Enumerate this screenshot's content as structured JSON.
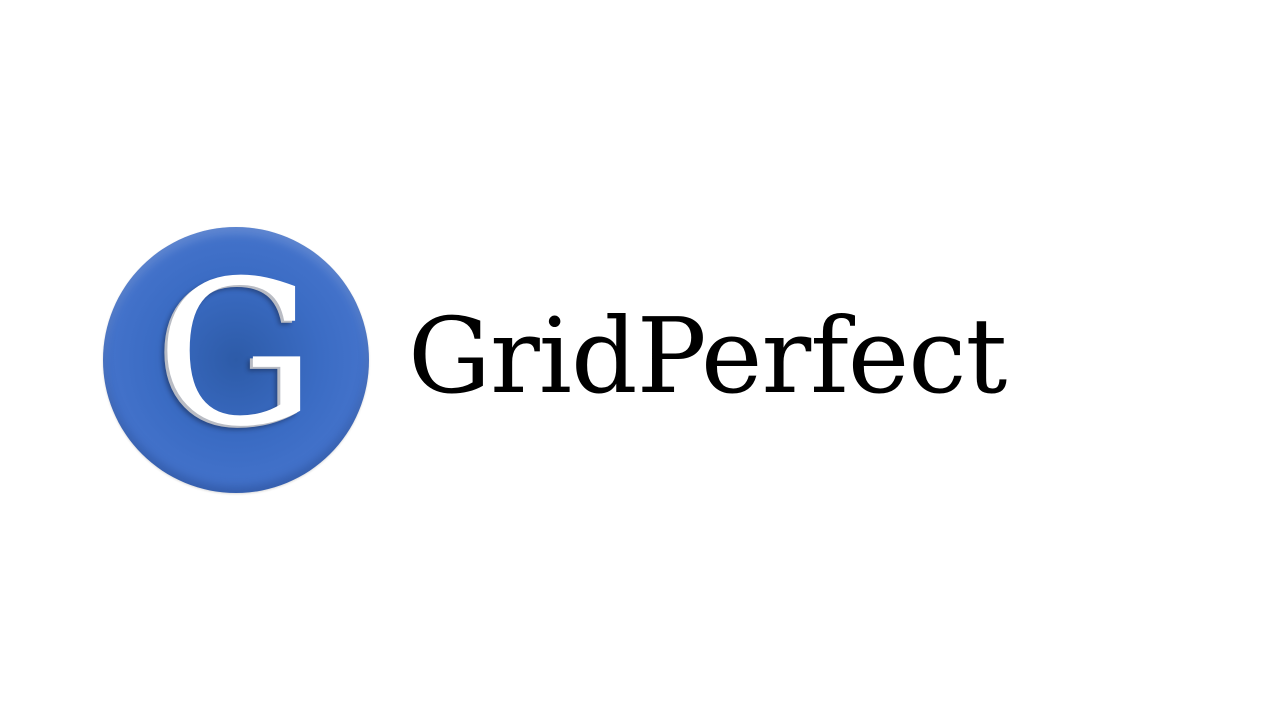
{
  "logo": {
    "letter": "G",
    "icon": "g-logo-icon",
    "color": "#3f6dc6"
  },
  "wordmark": {
    "text": "GridPerfect",
    "color": "#000000"
  },
  "background": "#ffffff"
}
